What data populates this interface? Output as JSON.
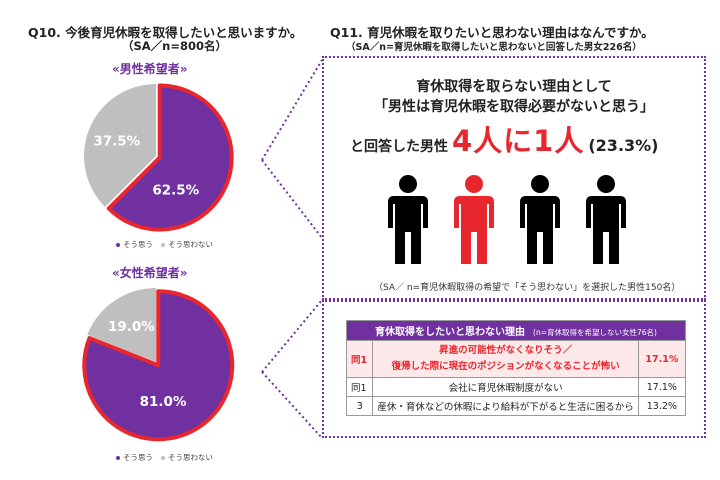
{
  "colors": {
    "agree": "#7030a0",
    "disagree": "#bfbfbf",
    "highlight": "#e8262d",
    "dotted_border": "#7030a0"
  },
  "q10": {
    "title": "Q10. 今後育児休暇を取得したいと思いますか。",
    "subtitle": "（SA／n=800名）"
  },
  "q11": {
    "title": "Q11. 育児休暇を取りたいと思わない理由はなんですか。",
    "subtitle": "（SA／n=育児休暇を取得したいと思わないと回答した男女226名）"
  },
  "chart_data": [
    {
      "type": "pie",
      "title": "«男性希望者»",
      "categories": [
        "そう思う",
        "そう思わない"
      ],
      "values": [
        62.5,
        37.5
      ],
      "value_labels": [
        "62.5%",
        "37.5%"
      ],
      "highlighted_slice": "そう思う",
      "legend": {
        "position": "bottom",
        "entries": [
          "そう思う",
          "そう思わない"
        ]
      }
    },
    {
      "type": "pie",
      "title": "«女性希望者»",
      "categories": [
        "そう思う",
        "そう思わない"
      ],
      "values": [
        81.0,
        19.0
      ],
      "value_labels": [
        "81.0%",
        "19.0%"
      ],
      "highlighted_slice": "そう思う",
      "legend": {
        "position": "bottom",
        "entries": [
          "そう思う",
          "そう思わない"
        ]
      }
    }
  ],
  "male_box": {
    "line1": "育休取得を取らない理由として",
    "line2": "「男性は育児休暇を取得必要がないと思う」",
    "line3_pre": "と回答した男性",
    "line3_emphasis": "4人に1人",
    "line3_pct": "(23.3%)",
    "figures": {
      "total": 4,
      "highlighted_index": 1,
      "icon": "person-icon"
    },
    "note": "（SA／ n=育児休暇取得の希望で「そう思わない」を選択した男性150名）"
  },
  "female_table": {
    "header": "育休取得をしたいと思わない理由",
    "header_note": "(n=育休取得を希望しない女性76名)",
    "rows": [
      {
        "rank": "同1",
        "reason_line1": "昇進の可能性がなくなりそう／",
        "reason_line2": "復帰した際に現在のポジションがなくなることが怖い",
        "pct": "17.1%",
        "highlight": true
      },
      {
        "rank": "同1",
        "reason_line1": "会社に育児休暇制度がない",
        "reason_line2": "",
        "pct": "17.1%",
        "highlight": false
      },
      {
        "rank": "3",
        "reason_line1": "産休・育休などの休暇により給料が下がると生活に困るから",
        "reason_line2": "",
        "pct": "13.2%",
        "highlight": false
      }
    ]
  }
}
